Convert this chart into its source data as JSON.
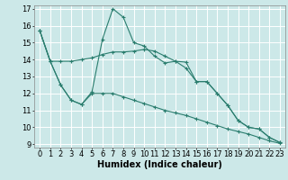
{
  "xlabel": "Humidex (Indice chaleur)",
  "bg_color": "#cce8e8",
  "grid_color": "#ffffff",
  "line_color": "#2a7d6e",
  "xlim": [
    -0.5,
    23.5
  ],
  "ylim": [
    8.8,
    17.2
  ],
  "yticks": [
    9,
    10,
    11,
    12,
    13,
    14,
    15,
    16,
    17
  ],
  "xticks": [
    0,
    1,
    2,
    3,
    4,
    5,
    6,
    7,
    8,
    9,
    10,
    11,
    12,
    13,
    14,
    15,
    16,
    17,
    18,
    19,
    20,
    21,
    22,
    23
  ],
  "series1_x": [
    0,
    1,
    2,
    3,
    4,
    5,
    6,
    7,
    8,
    9,
    10,
    11,
    12,
    13,
    14,
    15,
    16,
    17,
    18,
    19,
    20,
    21,
    22,
    23
  ],
  "series1_y": [
    15.7,
    13.9,
    13.9,
    13.9,
    14.0,
    14.1,
    14.3,
    14.45,
    14.45,
    14.5,
    14.6,
    14.5,
    14.2,
    13.9,
    13.5,
    12.7,
    12.7,
    12.0,
    11.3,
    10.4,
    10.0,
    9.9,
    9.4,
    9.1
  ],
  "series2_x": [
    0,
    1,
    2,
    3,
    4,
    5,
    6,
    7,
    8,
    9,
    10,
    11,
    12,
    13,
    14,
    15,
    16,
    17,
    18,
    19,
    20,
    21,
    22,
    23
  ],
  "series2_y": [
    15.7,
    13.9,
    12.5,
    11.6,
    11.35,
    12.1,
    15.2,
    17.0,
    16.5,
    15.0,
    14.8,
    14.2,
    13.8,
    13.9,
    13.85,
    12.7,
    12.7,
    12.0,
    11.3,
    10.4,
    10.0,
    9.9,
    9.4,
    9.1
  ],
  "series3_x": [
    0,
    1,
    2,
    3,
    4,
    5,
    6,
    7,
    8,
    9,
    10,
    11,
    12,
    13,
    14,
    15,
    16,
    17,
    18,
    19,
    20,
    21,
    22,
    23
  ],
  "series3_y": [
    15.7,
    13.9,
    12.5,
    11.6,
    11.35,
    12.0,
    12.0,
    12.0,
    11.8,
    11.6,
    11.4,
    11.2,
    11.0,
    10.85,
    10.7,
    10.5,
    10.3,
    10.1,
    9.9,
    9.75,
    9.6,
    9.4,
    9.2,
    9.05
  ],
  "xlabel_fontsize": 7,
  "tick_fontsize": 6
}
